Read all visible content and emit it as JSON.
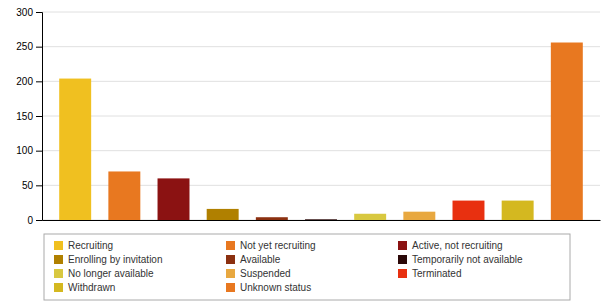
{
  "chart_data": {
    "type": "bar",
    "categories": [
      "Recruiting",
      "Not yet recruiting",
      "Active, not recruiting",
      "Enrolling by invitation",
      "Available",
      "Temporarily not available",
      "No longer available",
      "Suspended",
      "Terminated",
      "Withdrawn",
      "Unknown status"
    ],
    "values": [
      204,
      70,
      60,
      16,
      4,
      1,
      9,
      12,
      28,
      28,
      256
    ],
    "colors": [
      "#F0C020",
      "#E87820",
      "#8B1212",
      "#B08000",
      "#8B3010",
      "#2B0808",
      "#D8C840",
      "#E8A840",
      "#E83010",
      "#D4B820",
      "#E87820"
    ],
    "ylim": [
      0,
      300
    ],
    "yticks": [
      0,
      50,
      100,
      150,
      200,
      250,
      300
    ],
    "grid": true,
    "legend": "bottom",
    "tick_labels": "y"
  }
}
